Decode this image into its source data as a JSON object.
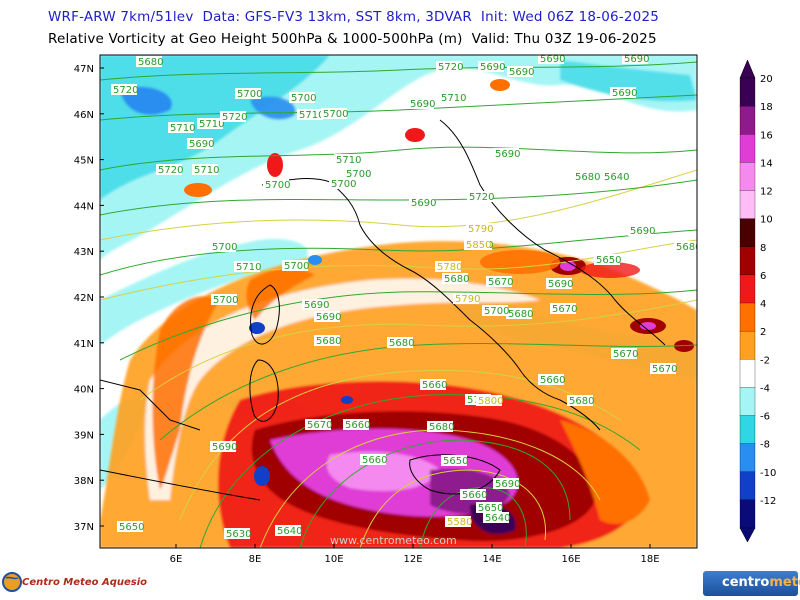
{
  "header": {
    "line1": "WRF-ARW 7km/51lev  Data: GFS-FV3 13km, SST 8km, 3DVAR  Init: Wed 06Z 18-06-2025",
    "line2": "Relative Vorticity at Geo Height 500hPa & 1000-500hPa (m)  Valid: Thu 03Z 19-06-2025"
  },
  "axes": {
    "lat_labels": [
      "47N",
      "46N",
      "45N",
      "44N",
      "43N",
      "42N",
      "41N",
      "40N",
      "39N",
      "38N",
      "37N"
    ],
    "lon_labels": [
      "6E",
      "8E",
      "10E",
      "12E",
      "14E",
      "16E",
      "18E"
    ]
  },
  "colorbar": {
    "labels": [
      "20",
      "18",
      "16",
      "14",
      "12",
      "10",
      "8",
      "6",
      "4",
      "2",
      "-2",
      "-4",
      "-6",
      "-8",
      "-10",
      "-12"
    ],
    "colors": [
      "#3a0056",
      "#8e1a8e",
      "#e03cd6",
      "#f48af0",
      "#ffbcf7",
      "#4b0000",
      "#a00000",
      "#f01818",
      "#ff7000",
      "#ffa020",
      "#ffffff",
      "#a6f5f5",
      "#30d6e6",
      "#2a8ef0",
      "#1040c8",
      "#0a0a78"
    ]
  },
  "contours": [
    {
      "text": "5710",
      "kind": "green"
    },
    {
      "text": "5690",
      "kind": "green"
    },
    {
      "text": "5680",
      "kind": "green"
    },
    {
      "text": "5690",
      "kind": "green"
    },
    {
      "text": "5720",
      "kind": "green"
    },
    {
      "text": "5700",
      "kind": "green"
    },
    {
      "text": "5700",
      "kind": "green"
    },
    {
      "text": "5690",
      "kind": "green"
    },
    {
      "text": "5710",
      "kind": "green"
    },
    {
      "text": "5690",
      "kind": "green"
    },
    {
      "text": "5690",
      "kind": "green"
    },
    {
      "text": "5710",
      "kind": "green"
    },
    {
      "text": "5710",
      "kind": "green"
    },
    {
      "text": "5720",
      "kind": "green"
    },
    {
      "text": "5710",
      "kind": "green"
    },
    {
      "text": "5700",
      "kind": "green"
    },
    {
      "text": "5690",
      "kind": "green"
    },
    {
      "text": "5700",
      "kind": "green"
    },
    {
      "text": "5700",
      "kind": "green"
    },
    {
      "text": "5690",
      "kind": "green"
    },
    {
      "text": "5720",
      "kind": "green"
    },
    {
      "text": "5720",
      "kind": "green"
    },
    {
      "text": "5710",
      "kind": "green"
    },
    {
      "text": "5700",
      "kind": "green"
    },
    {
      "text": "5680",
      "kind": "green"
    },
    {
      "text": "5710",
      "kind": "green"
    },
    {
      "text": "5690",
      "kind": "green"
    },
    {
      "text": "5700",
      "kind": "green"
    },
    {
      "text": "5690",
      "kind": "green"
    },
    {
      "text": "5680",
      "kind": "green"
    },
    {
      "text": "5710",
      "kind": "green"
    },
    {
      "text": "5700",
      "kind": "green"
    },
    {
      "text": "5690",
      "kind": "green"
    },
    {
      "text": "5680",
      "kind": "green"
    },
    {
      "text": "5680",
      "kind": "green"
    },
    {
      "text": "5690",
      "kind": "green"
    },
    {
      "text": "5650",
      "kind": "green"
    },
    {
      "text": "5690",
      "kind": "green"
    },
    {
      "text": "5670",
      "kind": "green"
    },
    {
      "text": "5680",
      "kind": "green"
    },
    {
      "text": "5700",
      "kind": "green"
    },
    {
      "text": "5670",
      "kind": "green"
    },
    {
      "text": "5680",
      "kind": "green"
    },
    {
      "text": "5680",
      "kind": "green"
    },
    {
      "text": "5670",
      "kind": "green"
    },
    {
      "text": "5670",
      "kind": "green"
    },
    {
      "text": "5660",
      "kind": "green"
    },
    {
      "text": "5690",
      "kind": "green"
    },
    {
      "text": "5660",
      "kind": "green"
    },
    {
      "text": "5670",
      "kind": "green"
    },
    {
      "text": "5680",
      "kind": "green"
    },
    {
      "text": "5660",
      "kind": "green"
    },
    {
      "text": "5660",
      "kind": "green"
    },
    {
      "text": "5650",
      "kind": "green"
    },
    {
      "text": "5690",
      "kind": "green"
    },
    {
      "text": "5650",
      "kind": "green"
    },
    {
      "text": "5640",
      "kind": "green"
    },
    {
      "text": "5650",
      "kind": "green"
    },
    {
      "text": "5630",
      "kind": "green"
    },
    {
      "text": "5640",
      "kind": "green"
    },
    {
      "text": "5640",
      "kind": "green"
    },
    {
      "text": "5710",
      "kind": "green"
    },
    {
      "text": "5680",
      "kind": "green"
    },
    {
      "text": "5660",
      "kind": "green"
    },
    {
      "text": "5580",
      "kind": "yellow"
    },
    {
      "text": "5800",
      "kind": "yellow"
    },
    {
      "text": "5790",
      "kind": "yellow"
    },
    {
      "text": "5780",
      "kind": "yellow"
    },
    {
      "text": "5790",
      "kind": "yellow"
    },
    {
      "text": "5850",
      "kind": "yellow"
    },
    {
      "text": "5690",
      "kind": "green"
    },
    {
      "text": "5700",
      "kind": "green"
    },
    {
      "text": "5680",
      "kind": "green"
    },
    {
      "text": "5690",
      "kind": "green"
    },
    {
      "text": "5720",
      "kind": "green"
    }
  ],
  "watermark": "www.centrometeo.com",
  "logos": {
    "left": "Centro Meteo Aquesio",
    "right_main": "centro",
    "right_sub": "meteo"
  }
}
